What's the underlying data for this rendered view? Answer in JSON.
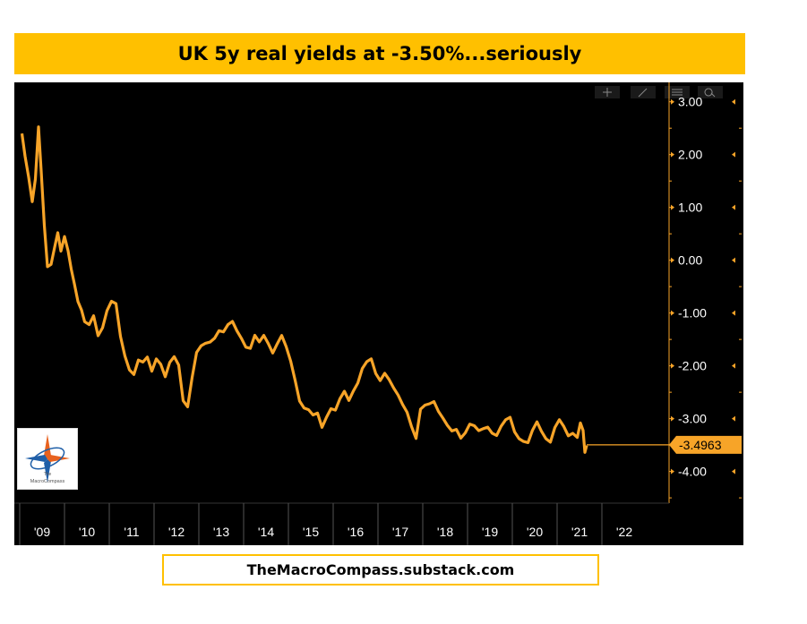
{
  "title": "UK 5y real yields at -3.50%...seriously",
  "footer": "TheMacroCompass.substack.com",
  "logo": {
    "line1": "The",
    "line2": "MacroCompass"
  },
  "colors": {
    "title_bg": "#ffc000",
    "line": "#f7a428",
    "chart_bg": "#000000",
    "axis": "#f7a428"
  },
  "toolbar_icons": [
    "crosshair-icon",
    "pencil-icon",
    "list-icon",
    "zoom-icon"
  ],
  "chart_data": {
    "type": "line",
    "ylim": [
      -4.6,
      3.3
    ],
    "xlim": [
      2008.5,
      2023.0
    ],
    "y_ticks": [
      3.0,
      2.0,
      1.0,
      0.0,
      -1.0,
      -2.0,
      -3.0,
      -4.0
    ],
    "y_tick_labels": [
      "3.00",
      "2.00",
      "1.00",
      "0.00",
      "-1.00",
      "-2.00",
      "-3.00",
      "-4.00"
    ],
    "x_ticks": [
      2009,
      2010,
      2011,
      2012,
      2013,
      2014,
      2015,
      2016,
      2017,
      2018,
      2019,
      2020,
      2021,
      2022
    ],
    "x_tick_labels": [
      "'09",
      "'10",
      "'11",
      "'12",
      "'13",
      "'14",
      "'15",
      "'16",
      "'17",
      "'18",
      "'19",
      "'20",
      "'21",
      "'22"
    ],
    "last_value_label": "-3.4963",
    "last_value": -3.4963,
    "series": [
      {
        "x": [
          2008.55,
          2008.62,
          2008.7,
          2008.78,
          2008.85,
          2008.92,
          2008.98,
          2009.05,
          2009.12,
          2009.2,
          2009.28,
          2009.35,
          2009.42,
          2009.5,
          2009.58,
          2009.65,
          2009.72,
          2009.8,
          2009.88,
          2009.95,
          2010.05,
          2010.15,
          2010.25,
          2010.35,
          2010.45,
          2010.55,
          2010.65,
          2010.75,
          2010.85,
          2010.95,
          2011.05,
          2011.15,
          2011.25,
          2011.35,
          2011.45,
          2011.55,
          2011.65,
          2011.75,
          2011.85,
          2011.95,
          2012.05,
          2012.15,
          2012.25,
          2012.35,
          2012.45,
          2012.55,
          2012.65,
          2012.75,
          2012.85,
          2012.95,
          2013.05,
          2013.15,
          2013.25,
          2013.35,
          2013.45,
          2013.55,
          2013.65,
          2013.75,
          2013.85,
          2013.95,
          2014.05,
          2014.15,
          2014.25,
          2014.35,
          2014.45,
          2014.55,
          2014.65,
          2014.75,
          2014.85,
          2014.95,
          2015.05,
          2015.15,
          2015.25,
          2015.35,
          2015.45,
          2015.55,
          2015.65,
          2015.75,
          2015.85,
          2015.95,
          2016.05,
          2016.15,
          2016.25,
          2016.35,
          2016.45,
          2016.55,
          2016.65,
          2016.75,
          2016.85,
          2016.95,
          2017.05,
          2017.15,
          2017.25,
          2017.35,
          2017.45,
          2017.55,
          2017.65,
          2017.75,
          2017.85,
          2017.95,
          2018.05,
          2018.15,
          2018.25,
          2018.35,
          2018.45,
          2018.55,
          2018.65,
          2018.75,
          2018.85,
          2018.95,
          2019.05,
          2019.15,
          2019.25,
          2019.35,
          2019.45,
          2019.55,
          2019.65,
          2019.75,
          2019.85,
          2019.95,
          2020.05,
          2020.15,
          2020.25,
          2020.35,
          2020.45,
          2020.55,
          2020.65,
          2020.75,
          2020.85,
          2020.95,
          2021.02,
          2021.08,
          2021.12,
          2021.16
        ],
        "y": [
          2.4,
          1.9,
          1.5,
          1.1,
          1.6,
          2.6,
          1.7,
          0.6,
          -0.2,
          -0.1,
          0.3,
          0.6,
          0.2,
          0.4,
          0.1,
          -0.2,
          -0.4,
          -0.7,
          -0.9,
          -1.2,
          -1.3,
          -1.1,
          -1.4,
          -1.2,
          -0.9,
          -0.8,
          -0.9,
          -1.5,
          -1.8,
          -2.0,
          -2.1,
          -1.9,
          -2.0,
          -1.9,
          -2.1,
          -1.8,
          -1.9,
          -2.2,
          -2.0,
          -1.9,
          -2.0,
          -2.6,
          -2.7,
          -2.2,
          -1.8,
          -1.7,
          -1.6,
          -1.5,
          -1.4,
          -1.3,
          -1.4,
          -1.3,
          -1.2,
          -1.3,
          -1.4,
          -1.6,
          -1.7,
          -1.5,
          -1.6,
          -1.4,
          -1.5,
          -1.7,
          -1.6,
          -1.5,
          -1.7,
          -1.9,
          -2.2,
          -2.6,
          -2.8,
          -2.9,
          -3.0,
          -2.9,
          -3.1,
          -2.9,
          -2.8,
          -2.9,
          -2.7,
          -2.5,
          -2.6,
          -2.4,
          -2.3,
          -2.1,
          -2.0,
          -1.9,
          -2.1,
          -2.2,
          -2.1,
          -2.3,
          -2.5,
          -2.6,
          -2.7,
          -2.8,
          -3.1,
          -3.4,
          -2.9,
          -2.8,
          -2.7,
          -2.6,
          -2.8,
          -3.0,
          -3.2,
          -3.3,
          -3.2,
          -3.3,
          -3.2,
          -3.1,
          -3.2,
          -3.3,
          -3.2,
          -3.1,
          -3.2,
          -3.3,
          -3.2,
          -3.1,
          -3.0,
          -3.2,
          -3.3,
          -3.4,
          -3.5,
          -3.3,
          -3.1,
          -3.2,
          -3.3,
          -3.4,
          -3.2,
          -3.1,
          -3.2,
          -3.3,
          -3.2,
          -3.3,
          -3.1,
          -3.3,
          -3.7,
          -3.4963
        ]
      }
    ]
  }
}
